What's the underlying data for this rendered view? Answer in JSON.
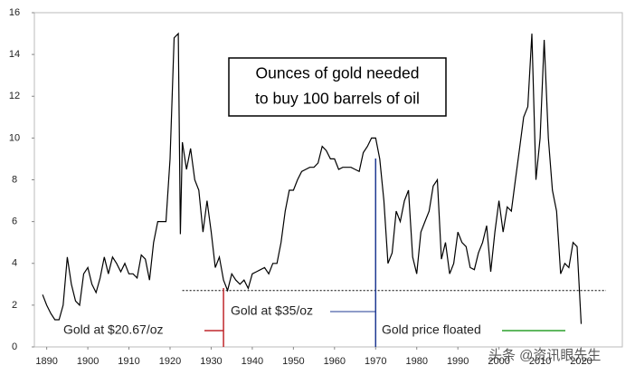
{
  "chart_data": {
    "type": "line",
    "title_lines": [
      "Ounces of gold needed",
      "to buy 100 barrels of oil"
    ],
    "x": [
      1889,
      1890,
      1891,
      1892,
      1893,
      1894,
      1895,
      1896,
      1897,
      1898,
      1899,
      1900,
      1901,
      1902,
      1903,
      1904,
      1905,
      1906,
      1907,
      1908,
      1909,
      1910,
      1911,
      1912,
      1913,
      1914,
      1915,
      1916,
      1917,
      1918,
      1919,
      1920,
      1921,
      1922,
      1922.5,
      1923,
      1924,
      1925,
      1926,
      1927,
      1928,
      1929,
      1930,
      1931,
      1932,
      1933,
      1934,
      1935,
      1936,
      1937,
      1938,
      1939,
      1940,
      1941,
      1942,
      1943,
      1944,
      1945,
      1946,
      1947,
      1948,
      1949,
      1950,
      1951,
      1952,
      1953,
      1954,
      1955,
      1956,
      1957,
      1958,
      1959,
      1960,
      1961,
      1962,
      1963,
      1964,
      1965,
      1966,
      1967,
      1968,
      1969,
      1970,
      1971,
      1972,
      1973,
      1974,
      1975,
      1976,
      1977,
      1978,
      1979,
      1980,
      1981,
      1982,
      1983,
      1984,
      1985,
      1986,
      1987,
      1988,
      1989,
      1990,
      1991,
      1992,
      1993,
      1994,
      1995,
      1996,
      1997,
      1998,
      1999,
      2000,
      2001,
      2002,
      2003,
      2004,
      2005,
      2006,
      2007,
      2008,
      2009,
      2010,
      2011,
      2012,
      2013,
      2014,
      2015,
      2016,
      2017,
      2018,
      2019,
      2020
    ],
    "series": [
      {
        "name": "Ounces of gold per 100 barrels",
        "color": "#000000",
        "values": [
          2.5,
          2.0,
          1.6,
          1.3,
          1.3,
          2.0,
          4.3,
          3.0,
          2.2,
          2.0,
          3.5,
          3.8,
          3.0,
          2.6,
          3.3,
          4.3,
          3.5,
          4.3,
          4.0,
          3.6,
          4.0,
          3.5,
          3.5,
          3.3,
          4.4,
          4.2,
          3.2,
          5.0,
          6.0,
          6.0,
          6.0,
          9.0,
          14.8,
          15.0,
          5.4,
          9.8,
          8.5,
          9.5,
          8.0,
          7.5,
          5.5,
          7.0,
          5.5,
          3.8,
          4.3,
          3.2,
          2.7,
          3.5,
          3.2,
          3.0,
          3.2,
          2.8,
          3.5,
          3.6,
          3.7,
          3.8,
          3.5,
          4.0,
          4.0,
          5.0,
          6.5,
          7.5,
          7.5,
          8.0,
          8.4,
          8.5,
          8.6,
          8.6,
          8.8,
          9.6,
          9.4,
          9.0,
          9.0,
          8.5,
          8.6,
          8.6,
          8.6,
          8.5,
          8.4,
          9.3,
          9.6,
          10.0,
          10.0,
          9.0,
          7.0,
          4.0,
          4.5,
          6.5,
          6.0,
          7.0,
          7.5,
          4.3,
          3.5,
          5.5,
          6.0,
          6.5,
          7.7,
          8.0,
          4.2,
          5.0,
          3.5,
          4.0,
          5.5,
          5.0,
          4.8,
          3.8,
          3.7,
          4.5,
          5.0,
          5.8,
          3.6,
          5.5,
          7.0,
          5.5,
          6.7,
          6.5,
          8.0,
          9.5,
          11.0,
          11.5,
          15.0,
          8.0,
          10.0,
          14.7,
          10.0,
          7.5,
          6.5,
          3.5,
          4.0,
          3.8,
          5.0,
          4.8,
          1.1
        ]
      }
    ],
    "xlim": [
      1887,
      2030
    ],
    "ylim": [
      0,
      16
    ],
    "xticks": [
      1890,
      1900,
      1910,
      1920,
      1930,
      1940,
      1950,
      1960,
      1970,
      1980,
      1990,
      2000,
      2010,
      2020
    ],
    "yticks": [
      0,
      2,
      4,
      6,
      8,
      10,
      12,
      14,
      16
    ],
    "threshold": {
      "value": 2.7,
      "from": 1923
    },
    "annotations": [
      {
        "text": "Gold at $20.67/oz",
        "color": "#c0282d",
        "x": 1933
      },
      {
        "text": "Gold at $35/oz",
        "color": "#1f3a93",
        "x": 1970
      },
      {
        "text": "Gold price floated",
        "color": "#2ca02c"
      }
    ],
    "watermark": "头条 @资讯眼先生"
  }
}
